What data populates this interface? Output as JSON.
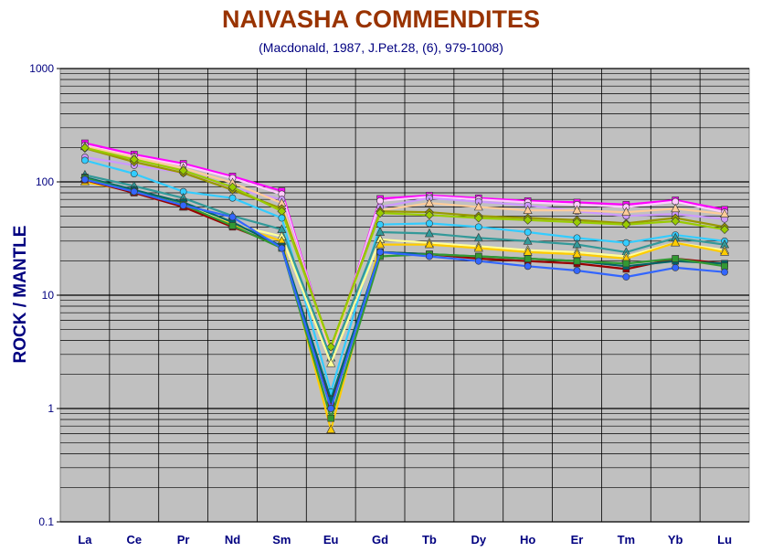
{
  "chart_data": {
    "type": "line",
    "title": "NAIVASHA COMMENDITES",
    "subtitle": "(Macdonald, 1987, J.Pet.28, (6), 979-1008)",
    "ylabel": "ROCK / MANTLE",
    "xlabel": "",
    "yscale": "log",
    "ylim": [
      0.1,
      1000
    ],
    "ytick_labels": [
      "0.1",
      "1",
      "10",
      "100",
      "1000"
    ],
    "grid": true,
    "legend": "none",
    "background_color": "#c0c0c0",
    "categories": [
      "La",
      "Ce",
      "Pr",
      "Nd",
      "Sm",
      "Eu",
      "Gd",
      "Tb",
      "Dy",
      "Ho",
      "Er",
      "Tm",
      "Yb",
      "Lu"
    ],
    "series": [
      {
        "color": "#ff00ff",
        "marker": "square",
        "values": [
          220,
          175,
          145,
          112,
          83,
          3.0,
          71,
          76,
          72,
          68,
          66,
          63,
          69,
          57
        ]
      },
      {
        "color": "#ffccff",
        "marker": "circle",
        "values": [
          210,
          168,
          140,
          108,
          78,
          3.0,
          68,
          74,
          70,
          66,
          63,
          60,
          67,
          54
        ]
      },
      {
        "color": "#cc99ff",
        "marker": "circle",
        "values": [
          165,
          140,
          120,
          88,
          70,
          3.2,
          60,
          72,
          67,
          62,
          55,
          50,
          52,
          47
        ]
      },
      {
        "color": "#ffcc99",
        "marker": "triangle",
        "values": [
          205,
          165,
          132,
          98,
          65,
          3.2,
          56,
          65,
          60,
          56,
          56,
          54,
          58,
          52
        ]
      },
      {
        "color": "#999900",
        "marker": "diamond",
        "values": [
          198,
          150,
          120,
          85,
          58,
          3.5,
          55,
          54,
          50,
          48,
          46,
          43,
          48,
          40
        ]
      },
      {
        "color": "#99cc00",
        "marker": "diamond",
        "values": [
          200,
          158,
          126,
          90,
          55,
          3.5,
          53,
          51,
          48,
          46,
          44,
          42,
          45,
          38
        ]
      },
      {
        "color": "#33ccff",
        "marker": "circle",
        "values": [
          155,
          118,
          82,
          72,
          48,
          1.4,
          42,
          43,
          40,
          36,
          32,
          29,
          34,
          30
        ]
      },
      {
        "color": "#339999",
        "marker": "triangle",
        "values": [
          115,
          92,
          72,
          50,
          38,
          2.8,
          36,
          35,
          32,
          30,
          28,
          24,
          32,
          28
        ]
      },
      {
        "color": "#ffff99",
        "marker": "triangle",
        "values": [
          108,
          84,
          66,
          42,
          33,
          2.5,
          31,
          29,
          27,
          25,
          24,
          22,
          29,
          25
        ]
      },
      {
        "color": "#ffcc00",
        "marker": "triangle",
        "values": [
          100,
          82,
          60,
          42,
          30,
          0.65,
          28,
          28,
          26,
          24,
          23,
          21,
          29,
          24
        ]
      },
      {
        "color": "#990000",
        "marker": "square",
        "values": [
          104,
          80,
          60,
          40,
          27,
          1.1,
          24,
          23,
          21,
          20,
          19,
          17,
          21,
          19
        ]
      },
      {
        "color": "#006666",
        "marker": "square",
        "values": [
          110,
          85,
          66,
          44,
          27,
          1.2,
          24,
          23,
          22,
          21,
          20,
          18,
          20,
          19
        ]
      },
      {
        "color": "#339933",
        "marker": "square",
        "values": [
          108,
          82,
          63,
          41,
          26,
          0.82,
          22,
          23,
          22,
          21,
          20,
          19,
          21,
          18
        ]
      },
      {
        "color": "#3366ff",
        "marker": "circle",
        "values": [
          105,
          82,
          62,
          49,
          26,
          1.0,
          24,
          22,
          20,
          18,
          16.5,
          14.5,
          17.5,
          16
        ]
      }
    ]
  }
}
